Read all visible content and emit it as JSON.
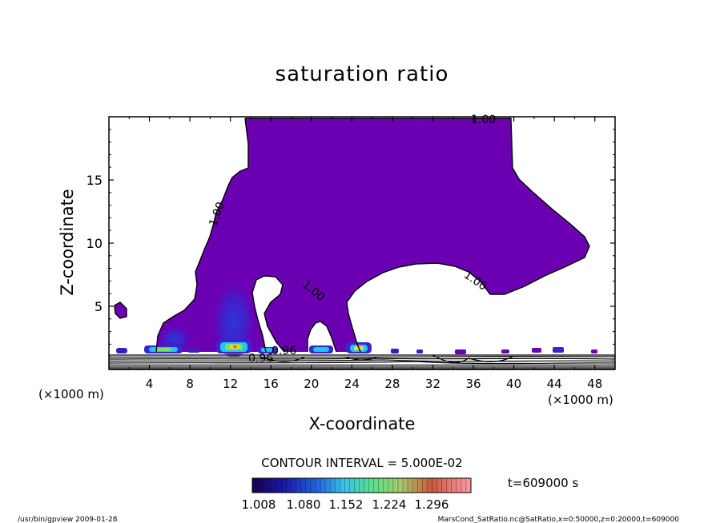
{
  "chart_data": {
    "type": "contour",
    "title": "saturation ratio",
    "xlabel": "X-coordinate",
    "ylabel": "Z-coordinate",
    "x_unit_left": "(×1000 m)",
    "x_unit_right": "(×1000 m)",
    "xlim": [
      0,
      50
    ],
    "ylim": [
      0,
      20
    ],
    "x_ticks": [
      4,
      8,
      12,
      16,
      20,
      24,
      28,
      32,
      36,
      40,
      44,
      48
    ],
    "y_ticks": [
      5,
      10,
      15
    ],
    "contour_labels": [
      {
        "text": "1.00",
        "x": 37,
        "y": 19.5,
        "angle": 0
      },
      {
        "text": "1.00",
        "x": 11,
        "y": 12.2,
        "angle": -70
      },
      {
        "text": "1.00",
        "x": 20,
        "y": 6.0,
        "angle": 40
      },
      {
        "text": "1.00",
        "x": 36,
        "y": 6.8,
        "angle": 35
      },
      {
        "text": "0.96",
        "x": 17.3,
        "y": 1.2,
        "angle": 0
      },
      {
        "text": "0.96",
        "x": 15.0,
        "y": 0.6,
        "angle": 0
      }
    ],
    "contour_interval_text": "CONTOUR INTERVAL = 5.000E-02",
    "colorbar_labels": [
      "1.008",
      "1.080",
      "1.152",
      "1.224",
      "1.296"
    ],
    "time_text": "t=609000 s",
    "colors": {
      "fill_main": "#6b00b3",
      "fill_dense": "#3b22c8",
      "high_band": "#19c8ff"
    }
  },
  "footer": {
    "left": "/usr/bin/gpview 2009-01-28",
    "right": "MarsCond_SatRatio.nc@SatRatio,x=0:50000,z=0:20000,t=609000"
  }
}
